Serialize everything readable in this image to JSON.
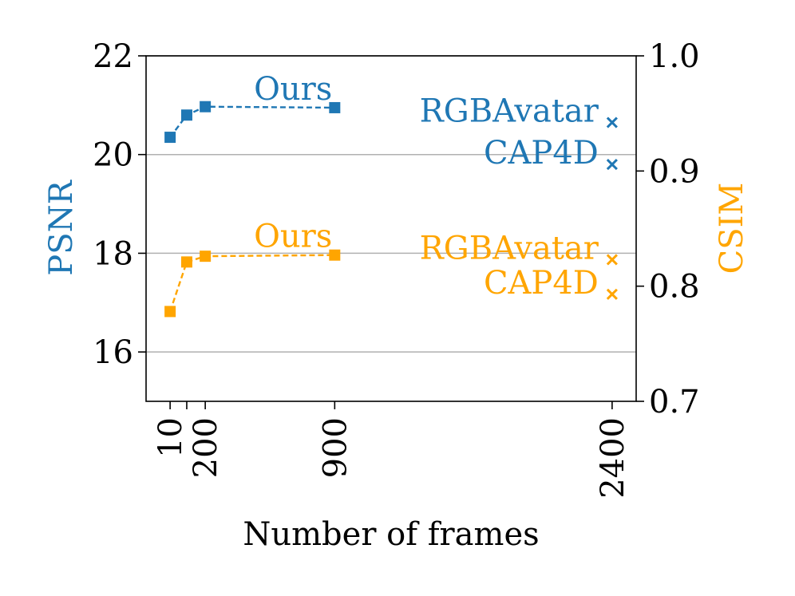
{
  "chart_data": {
    "type": "line",
    "xlabel": "Number of frames",
    "x_ticks": [
      10,
      100,
      200,
      900,
      2400
    ],
    "x_tick_labels": [
      "10",
      "",
      "200",
      "900",
      "2400"
    ],
    "xlim": [
      -120,
      2530
    ],
    "grid": "horizontal",
    "left_axis": {
      "label": "PSNR",
      "color": "#1f77b4",
      "ylim": [
        15,
        22
      ],
      "ticks": [
        16,
        18,
        20,
        22
      ],
      "tick_labels": [
        "16",
        "18",
        "20",
        "22"
      ]
    },
    "right_axis": {
      "label": "CSIM",
      "color": "#ffa500",
      "ylim": [
        0.7,
        1.0
      ],
      "ticks": [
        0.7,
        0.8,
        0.9,
        1.0
      ],
      "tick_labels": [
        "0.7",
        "0.8",
        "0.9",
        "1.0"
      ]
    },
    "series": [
      {
        "name": "Ours",
        "axis": "left",
        "color": "#1f77b4",
        "marker": "square",
        "linestyle": "dashed",
        "x": [
          10,
          100,
          200,
          900
        ],
        "y": [
          20.35,
          20.8,
          20.97,
          20.95
        ]
      },
      {
        "name": "Ours",
        "axis": "right",
        "color": "#ffa500",
        "marker": "square",
        "linestyle": "dashed",
        "x": [
          10,
          100,
          200,
          900
        ],
        "y": [
          0.778,
          0.821,
          0.826,
          0.827
        ]
      },
      {
        "name": "RGBAvatar",
        "axis": "left",
        "color": "#1f77b4",
        "marker": "x",
        "x": [
          2400
        ],
        "y": [
          20.65
        ]
      },
      {
        "name": "CAP4D",
        "axis": "left",
        "color": "#1f77b4",
        "marker": "x",
        "x": [
          2400
        ],
        "y": [
          19.8
        ]
      },
      {
        "name": "RGBAvatar",
        "axis": "right",
        "color": "#ffa500",
        "marker": "x",
        "x": [
          2400
        ],
        "y": [
          0.823
        ]
      },
      {
        "name": "CAP4D",
        "axis": "right",
        "color": "#ffa500",
        "marker": "x",
        "x": [
          2400
        ],
        "y": [
          0.793
        ]
      }
    ]
  }
}
